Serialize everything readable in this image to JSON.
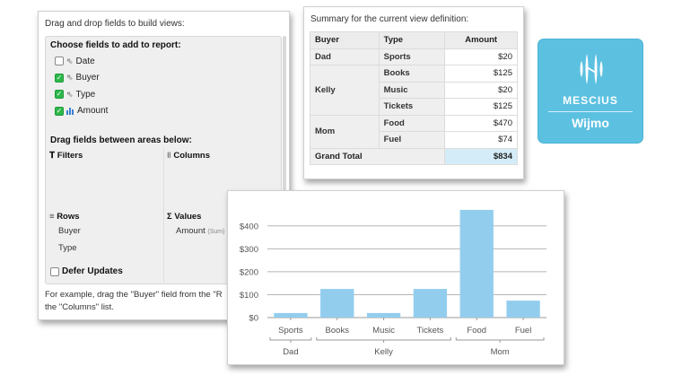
{
  "pivot_panel": {
    "header": "Drag and drop fields to build views:",
    "choose_title": "Choose fields to add to report:",
    "fields": [
      {
        "label": "Date",
        "checked": false,
        "kind": "text"
      },
      {
        "label": "Buyer",
        "checked": true,
        "kind": "text"
      },
      {
        "label": "Type",
        "checked": true,
        "kind": "text"
      },
      {
        "label": "Amount",
        "checked": true,
        "kind": "number"
      }
    ],
    "drag_title": "Drag fields between areas below:",
    "areas": {
      "filters": {
        "icon": "filter-icon",
        "label": "Filters",
        "items": []
      },
      "columns": {
        "icon": "columns-icon",
        "label": "Columns",
        "items": []
      },
      "rows": {
        "icon": "rows-icon",
        "label": "Rows",
        "items": [
          "Buyer",
          "Type"
        ]
      },
      "values": {
        "icon": "sigma-icon",
        "label": "Values",
        "items": [
          {
            "label": "Amount",
            "aggregate": "(Sum)"
          }
        ]
      }
    },
    "defer_updates": {
      "label": "Defer Updates",
      "checked": false
    },
    "footer_line1": "For example, drag the \"Buyer\" field from the \"R",
    "footer_line2": "the \"Columns\" list."
  },
  "summary_panel": {
    "header": "Summary for the current view definition:",
    "columns": [
      "Buyer",
      "Type",
      "Amount"
    ],
    "groups": [
      {
        "buyer": "Dad",
        "rows": [
          {
            "type": "Sports",
            "amount": "$20"
          }
        ]
      },
      {
        "buyer": "Kelly",
        "rows": [
          {
            "type": "Books",
            "amount": "$125"
          },
          {
            "type": "Music",
            "amount": "$20"
          },
          {
            "type": "Tickets",
            "amount": "$125"
          }
        ]
      },
      {
        "buyer": "Mom",
        "rows": [
          {
            "type": "Food",
            "amount": "$470"
          },
          {
            "type": "Fuel",
            "amount": "$74"
          }
        ]
      }
    ],
    "grand_total_label": "Grand Total",
    "grand_total": "$834"
  },
  "logo": {
    "brand": "MESCIUS",
    "product": "Wijmo",
    "color": "#5cc1e1"
  },
  "chart_data": {
    "type": "bar",
    "title": "",
    "xlabel": "",
    "ylabel": "",
    "categories": [
      "Sports",
      "Books",
      "Music",
      "Tickets",
      "Food",
      "Fuel"
    ],
    "groups": [
      {
        "label": "Dad",
        "categories": [
          "Sports"
        ]
      },
      {
        "label": "Kelly",
        "categories": [
          "Books",
          "Music",
          "Tickets"
        ]
      },
      {
        "label": "Mom",
        "categories": [
          "Food",
          "Fuel"
        ]
      }
    ],
    "series": [
      {
        "name": "Amount (Sum)",
        "values": [
          20,
          125,
          20,
          125,
          470,
          74
        ],
        "color": "#93cdee"
      }
    ],
    "yticks": [
      "$0",
      "$100",
      "$200",
      "$300",
      "$400"
    ],
    "ytick_values": [
      0,
      100,
      200,
      300,
      400
    ],
    "ylim": [
      0,
      470
    ],
    "grid": true,
    "legend": "none"
  }
}
